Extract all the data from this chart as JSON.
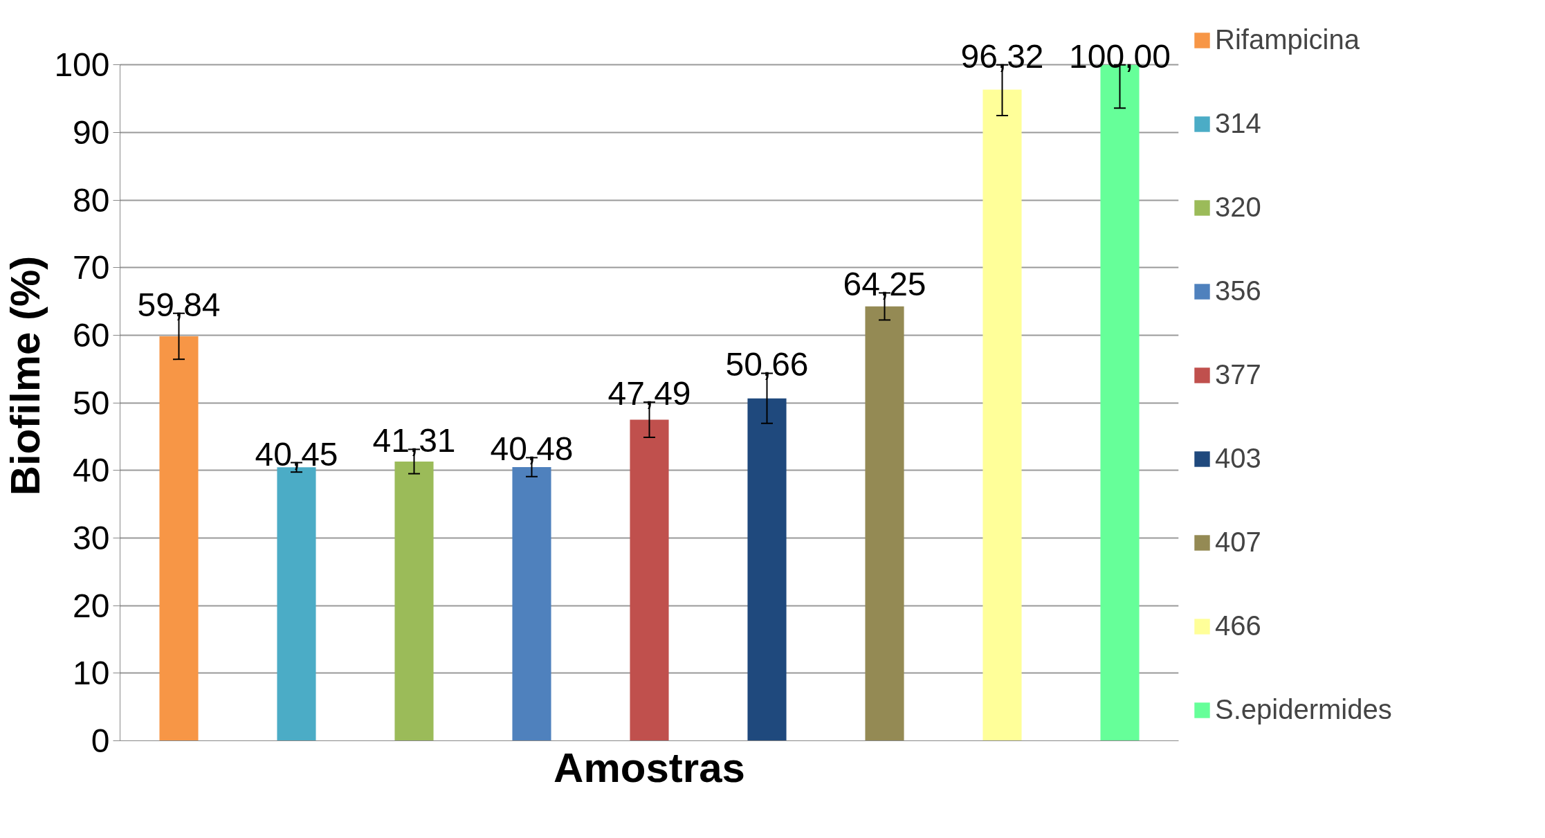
{
  "chart_data": {
    "type": "bar",
    "xlabel": "Amostras",
    "ylabel": "Biofilme (%)",
    "categories": [
      null,
      null,
      null,
      null,
      null,
      null,
      null,
      null,
      null
    ],
    "series": [
      {
        "name": "Rifampicina",
        "color": "#f79646",
        "values": [
          59.84,
          null,
          null,
          null,
          null,
          null,
          null,
          null,
          null
        ],
        "value_labels": [
          "59,84",
          null,
          null,
          null,
          null,
          null,
          null,
          null,
          null
        ],
        "errors": [
          3.4,
          null,
          null,
          null,
          null,
          null,
          null,
          null,
          null
        ]
      },
      {
        "name": "314",
        "color": "#4bacc6",
        "values": [
          null,
          40.45,
          null,
          null,
          null,
          null,
          null,
          null,
          null
        ],
        "value_labels": [
          null,
          "40,45",
          null,
          null,
          null,
          null,
          null,
          null,
          null
        ],
        "errors": [
          null,
          0.7,
          null,
          null,
          null,
          null,
          null,
          null,
          null
        ]
      },
      {
        "name": "320",
        "color": "#9bbb59",
        "values": [
          null,
          null,
          41.31,
          null,
          null,
          null,
          null,
          null,
          null
        ],
        "value_labels": [
          null,
          null,
          "41,31",
          null,
          null,
          null,
          null,
          null,
          null
        ],
        "errors": [
          null,
          null,
          1.8,
          null,
          null,
          null,
          null,
          null,
          null
        ]
      },
      {
        "name": "356",
        "color": "#4f81bd",
        "values": [
          null,
          null,
          null,
          40.48,
          null,
          null,
          null,
          null,
          null
        ],
        "value_labels": [
          null,
          null,
          null,
          "40,48",
          null,
          null,
          null,
          null,
          null
        ],
        "errors": [
          null,
          null,
          null,
          1.4,
          null,
          null,
          null,
          null,
          null
        ]
      },
      {
        "name": "377",
        "color": "#c0504d",
        "values": [
          null,
          null,
          null,
          null,
          47.49,
          null,
          null,
          null,
          null
        ],
        "value_labels": [
          null,
          null,
          null,
          null,
          "47,49",
          null,
          null,
          null,
          null
        ],
        "errors": [
          null,
          null,
          null,
          null,
          2.6,
          null,
          null,
          null,
          null
        ]
      },
      {
        "name": "403",
        "color": "#1f497d",
        "values": [
          null,
          null,
          null,
          null,
          null,
          50.66,
          null,
          null,
          null
        ],
        "value_labels": [
          null,
          null,
          null,
          null,
          null,
          "50,66",
          null,
          null,
          null
        ],
        "errors": [
          null,
          null,
          null,
          null,
          null,
          3.7,
          null,
          null,
          null
        ]
      },
      {
        "name": "407",
        "color": "#948a54",
        "values": [
          null,
          null,
          null,
          null,
          null,
          null,
          64.25,
          null,
          null
        ],
        "value_labels": [
          null,
          null,
          null,
          null,
          null,
          null,
          "64,25",
          null,
          null
        ],
        "errors": [
          null,
          null,
          null,
          null,
          null,
          null,
          2.0,
          null,
          null
        ]
      },
      {
        "name": "466",
        "color": "#ffff99",
        "values": [
          null,
          null,
          null,
          null,
          null,
          null,
          null,
          96.32,
          null
        ],
        "value_labels": [
          null,
          null,
          null,
          null,
          null,
          null,
          null,
          "96,32",
          null
        ],
        "errors": [
          null,
          null,
          null,
          null,
          null,
          null,
          null,
          [
            92.5,
            100
          ],
          null
        ]
      },
      {
        "name": "S.epidermides",
        "color": "#66ff99",
        "values": [
          null,
          null,
          null,
          null,
          null,
          null,
          null,
          null,
          100.0
        ],
        "value_labels": [
          null,
          null,
          null,
          null,
          null,
          null,
          null,
          null,
          "100,00"
        ],
        "errors": [
          null,
          null,
          null,
          null,
          null,
          null,
          null,
          null,
          [
            93.6,
            100
          ]
        ]
      }
    ],
    "ylim": [
      0,
      100
    ],
    "yticks": [
      0,
      10,
      20,
      30,
      40,
      50,
      60,
      70,
      80,
      90,
      100
    ],
    "grid": "y",
    "legend": "right",
    "tick_labels": "y"
  }
}
